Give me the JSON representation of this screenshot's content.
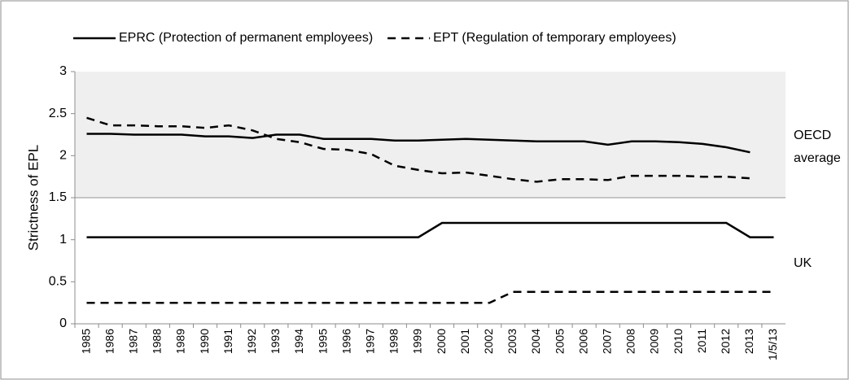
{
  "chart_data": {
    "type": "line",
    "y_label": "Strictness of EPL",
    "categories": [
      "1985",
      "1986",
      "1987",
      "1988",
      "1989",
      "1990",
      "1991",
      "1992",
      "1993",
      "1994",
      "1995",
      "1996",
      "1997",
      "1998",
      "1999",
      "2000",
      "2001",
      "2002",
      "2003",
      "2004",
      "2005",
      "2006",
      "2007",
      "2008",
      "2009",
      "2010",
      "2011",
      "2012",
      "2013",
      "1/5/13"
    ],
    "ylim": [
      0,
      3
    ],
    "yticks": [
      0,
      0.5,
      1,
      1.5,
      2,
      2.5,
      3
    ],
    "legend": [
      {
        "name": "EPRC (Protection of permanent employees)",
        "color": "#000000",
        "dashed": false
      },
      {
        "name": "EPT (Regulation of temporary employees)",
        "color": "#000000",
        "dashed": true
      }
    ],
    "panels": [
      {
        "label_lines": [
          "OECD",
          "average"
        ],
        "background": "#efefef",
        "from": 1.5,
        "series": [
          {
            "values": [
              2.26,
              2.26,
              2.25,
              2.25,
              2.25,
              2.23,
              2.23,
              2.21,
              2.25,
              2.25,
              2.2,
              2.2,
              2.2,
              2.18,
              2.18,
              2.19,
              2.2,
              2.19,
              2.18,
              2.17,
              2.17,
              2.17,
              2.13,
              2.17,
              2.17,
              2.16,
              2.14,
              2.1,
              2.04,
              null
            ]
          },
          {
            "values": [
              2.45,
              2.36,
              2.36,
              2.35,
              2.35,
              2.33,
              2.36,
              2.3,
              2.2,
              2.16,
              2.08,
              2.07,
              2.02,
              1.88,
              1.83,
              1.79,
              1.8,
              1.76,
              1.72,
              1.69,
              1.72,
              1.72,
              1.71,
              1.76,
              1.76,
              1.76,
              1.75,
              1.75,
              1.73,
              null
            ]
          }
        ]
      },
      {
        "label_lines": [
          "UK"
        ],
        "background": "#ffffff",
        "from": 0,
        "series": [
          {
            "values": [
              1.03,
              1.03,
              1.03,
              1.03,
              1.03,
              1.03,
              1.03,
              1.03,
              1.03,
              1.03,
              1.03,
              1.03,
              1.03,
              1.03,
              1.03,
              1.2,
              1.2,
              1.2,
              1.2,
              1.2,
              1.2,
              1.2,
              1.2,
              1.2,
              1.2,
              1.2,
              1.2,
              1.2,
              1.03,
              1.03
            ]
          },
          {
            "values": [
              0.25,
              0.25,
              0.25,
              0.25,
              0.25,
              0.25,
              0.25,
              0.25,
              0.25,
              0.25,
              0.25,
              0.25,
              0.25,
              0.25,
              0.25,
              0.25,
              0.25,
              0.25,
              0.38,
              0.38,
              0.38,
              0.38,
              0.38,
              0.38,
              0.38,
              0.38,
              0.38,
              0.38,
              0.38,
              0.38
            ]
          }
        ]
      }
    ]
  }
}
